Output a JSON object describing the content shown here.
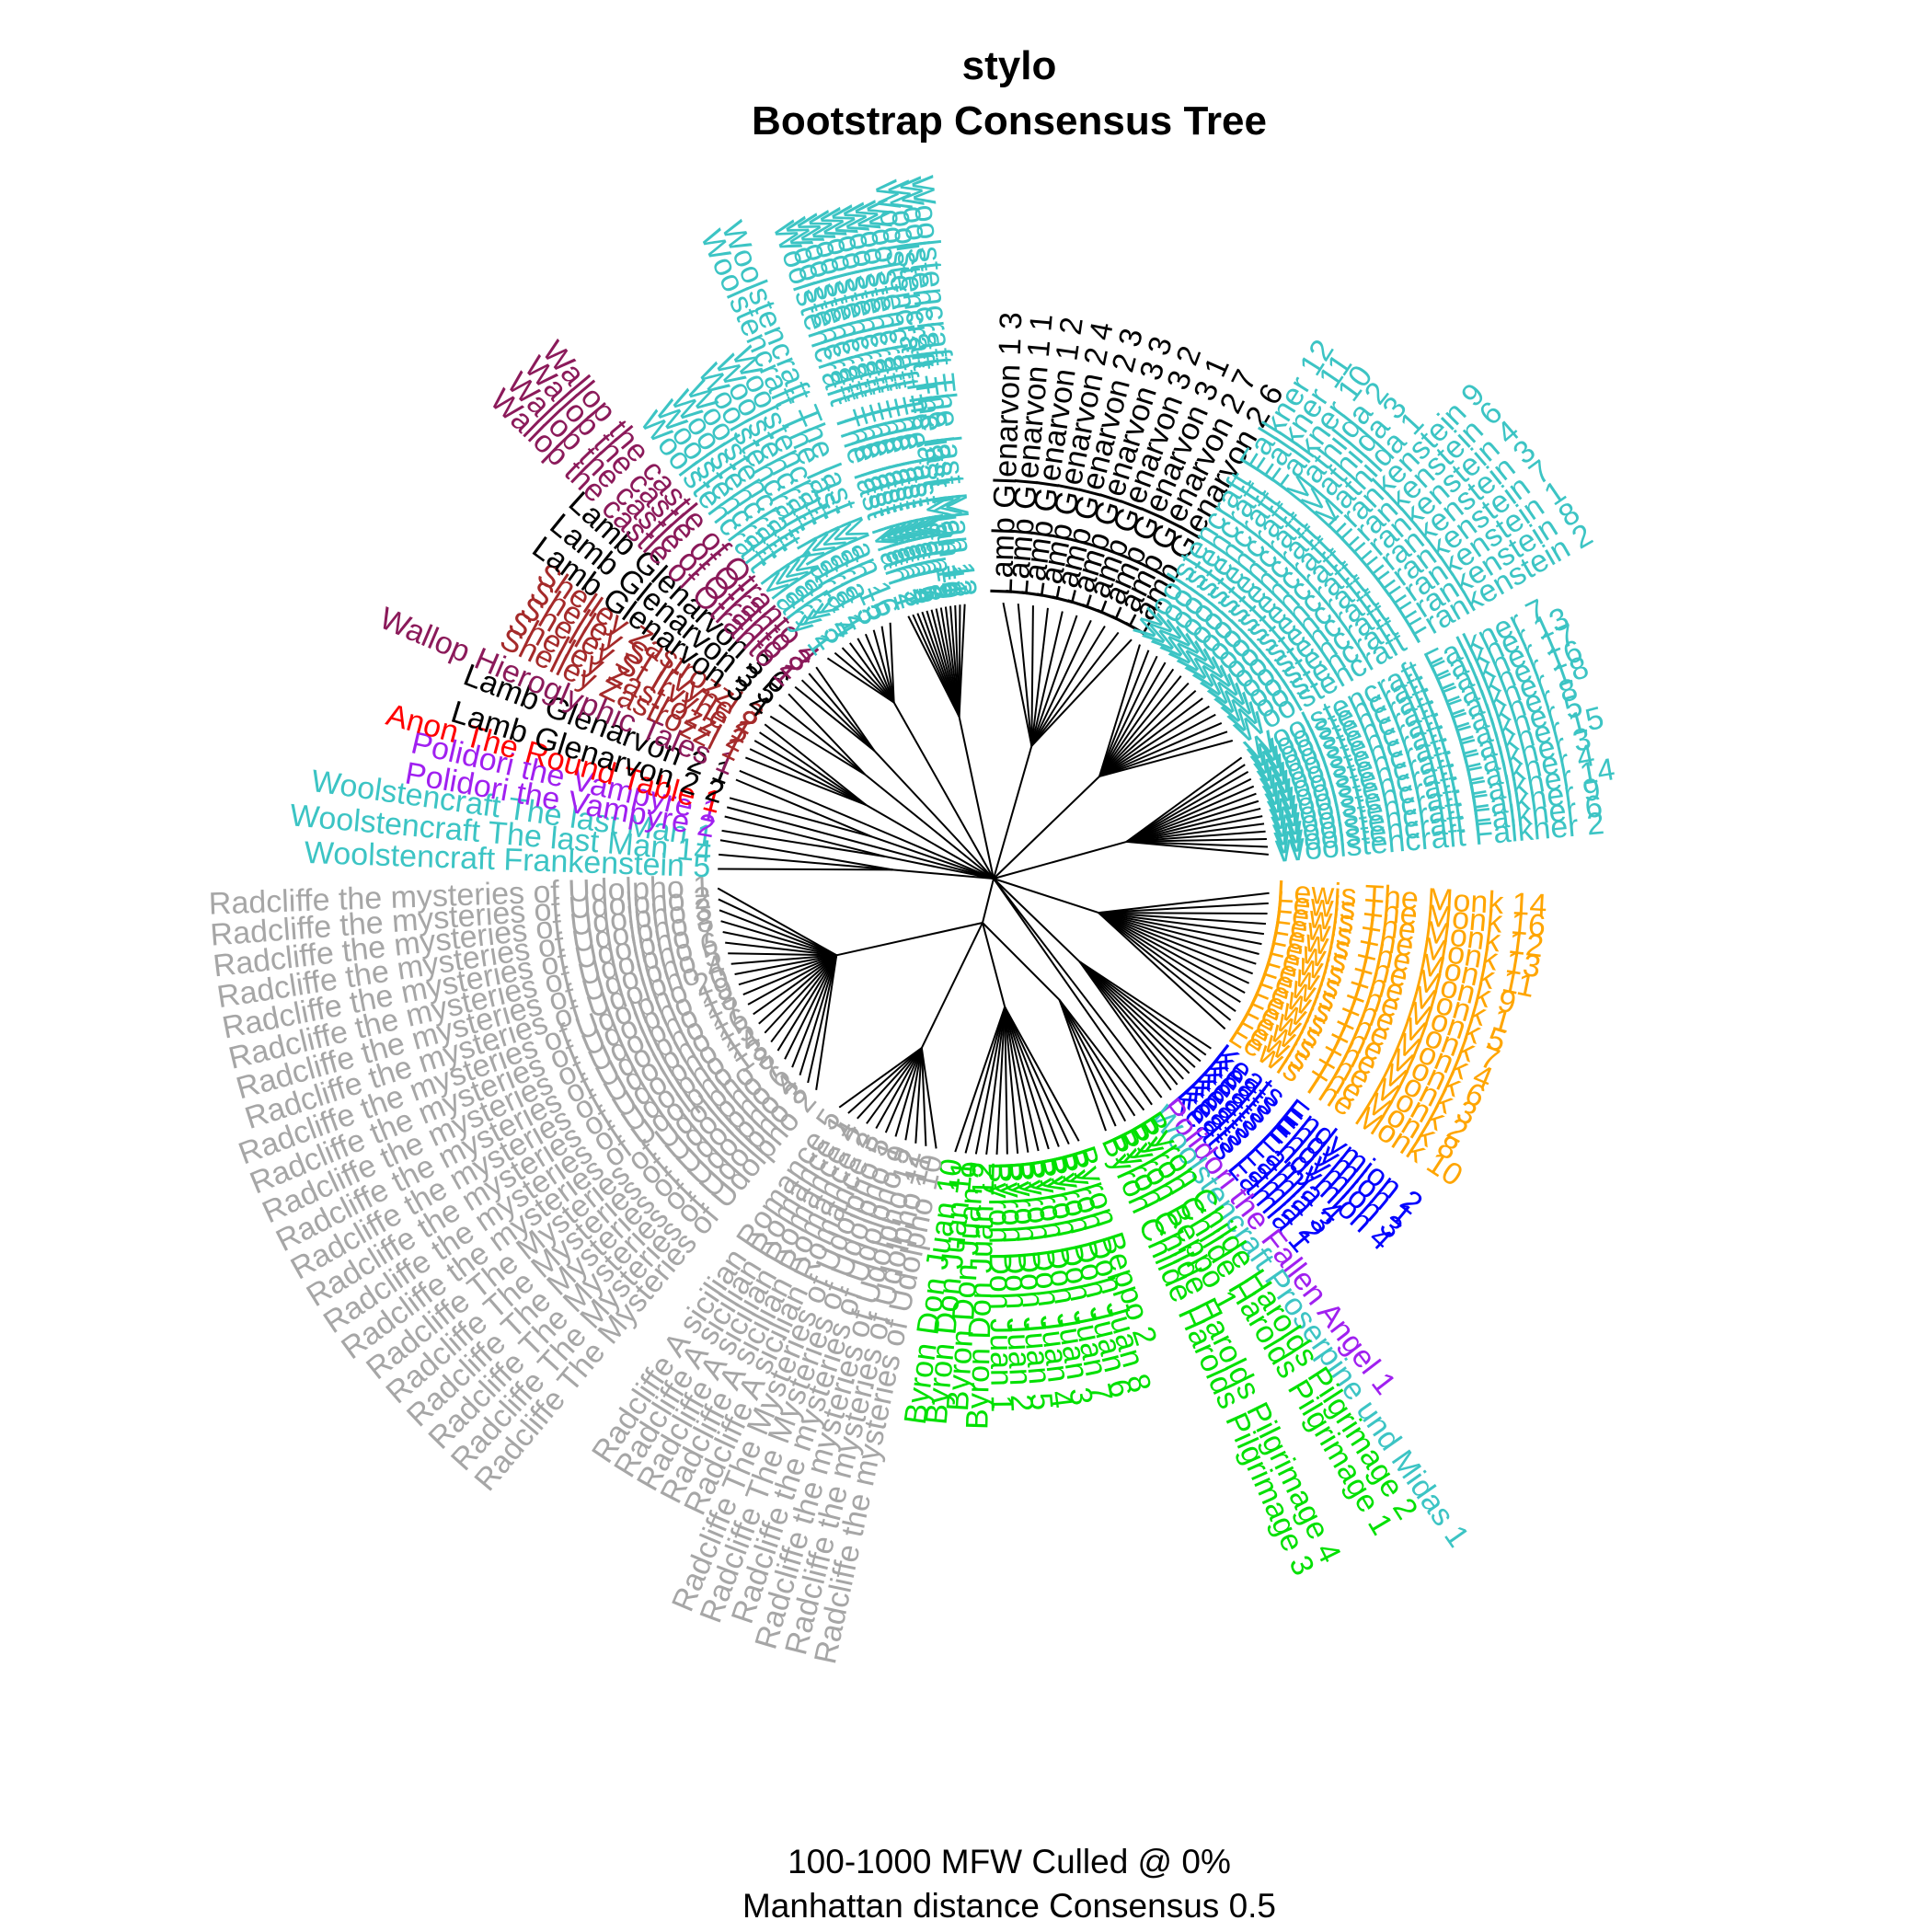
{
  "title": {
    "line1": "stylo",
    "line2": "Bootstrap Consensus Tree"
  },
  "footer": {
    "line1": "100-1000 MFW  Culled @ 0%",
    "line2": "Manhattan distance Consensus 0.5"
  },
  "colors": {
    "woolstencraft": "#3cc4c4",
    "lamb": "#000000",
    "wallop": "#8b1a5a",
    "shelley": "#a52a2a",
    "polidori": "#a020f0",
    "anon": "#ff0000",
    "radcliffe": "#a6a6a6",
    "byron": "#00e000",
    "keats": "#0000ff",
    "lewis": "#ffa500",
    "edge": "#000000"
  },
  "tree": {
    "root_text": "",
    "groups": [
      {
        "name": "woolstencraft-top",
        "color_key": "woolstencraft",
        "leaves": [
          "Woolstencraft The last Man 1",
          "Woolstencraft The last Man 2",
          "Woolstencraft The last Man 3",
          "Woolstencraft The last Man 4",
          "Woolstencraft The last Man 5",
          "Woolstencraft The last Man 6",
          "Woolstencraft The last Man 7",
          "Woolstencraft The last Man 8",
          "Woolstencraft The last Man 9",
          "Woolstencraft The last Man 10",
          "Woolstencraft The last Man 11",
          "Woolstencraft The last Man 12",
          "Woolstencraft The last Man 13"
        ]
      },
      {
        "name": "lamb-top",
        "color_key": "lamb",
        "leaves": [
          "Lamb Glenarvon 1 3",
          "Lamb Glenarvon 1 1",
          "Lamb Glenarvon 1 2",
          "Lamb Glenarvon 2 4",
          "Lamb Glenarvon 2 3",
          "Lamb Glenarvon 3 3",
          "Lamb Glenarvon 3 2",
          "Lamb Glenarvon 3 1",
          "Lamb Glenarvon 2 7",
          "Lamb Glenarvon 2 6"
        ]
      },
      {
        "name": "frankenstein-mathilda",
        "color_key": "woolstencraft",
        "leaves": [
          "Woolstencraft Falkner 12",
          "Woolstencraft Falkner 11",
          "Woolstencraft Falkner 10",
          "Woolstencraft Mathilda 2",
          "Woolstencraft Mathilda 3",
          "Woolstencraft Mathilda 1",
          "Woolstencraft Frankenstein 9",
          "Woolstencraft Frankenstein 6",
          "Woolstencraft Frankenstein 4",
          "Woolstencraft Frankenstein 3",
          "Woolstencraft Frankenstein 7",
          "Woolstencraft Frankenstein 1",
          "Woolstencraft Frankenstein 8",
          "Woolstencraft Frankenstein 2"
        ]
      },
      {
        "name": "falkner",
        "color_key": "woolstencraft",
        "leaves": [
          "Woolstencraft Falkner 7",
          "Woolstencraft Falkner 13",
          "Woolstencraft Falkner 17",
          "Woolstencraft Falkner 16",
          "Woolstencraft Falkner 18",
          "Woolstencraft Falkner 8",
          "Woolstencraft Falkner 5",
          "Woolstencraft Falkner 15",
          "Woolstencraft Falkner 3",
          "Woolstencraft Falkner 4",
          "Woolstencraft Falkner 14",
          "Woolstencraft Falkner 9",
          "Woolstencraft Falkner 6",
          "Woolstencraft Falkner 2"
        ]
      },
      {
        "name": "lewis",
        "color_key": "lewis",
        "leaves": [
          "Lewis The Monk 14",
          "Lewis The Monk 16",
          "Lewis The Monk 12",
          "Lewis The Monk 13",
          "Lewis The Monk 11",
          "Lewis The Monk 9",
          "Lewis The Monk 1",
          "Lewis The Monk 5",
          "Lewis The Monk 7",
          "Lewis The Monk 4",
          "Lewis The Monk 6",
          "Lewis The Monk 3",
          "Lewis The Monk 2",
          "Lewis The Monk 8",
          "Lewis The Monk 10"
        ]
      },
      {
        "name": "keats",
        "color_key": "keats",
        "leaves": [
          "Keats Endymion 2",
          "Keats Endymion 1",
          "Keats Endymion 3",
          "Keats Endymion 4",
          "Keats Lamia 4",
          "Keats Lamia 3",
          "Keats Lamia 2",
          "Keats Lamia 1"
        ]
      },
      {
        "name": "polidori-angel",
        "color_key": "polidori",
        "leaves": [
          "Polidori the Fallen Angel 1"
        ]
      },
      {
        "name": "proserpine",
        "color_key": "woolstencraft",
        "leaves": [
          "Woolstencraft Proserpine und Midas 1"
        ]
      },
      {
        "name": "byron-childe",
        "color_key": "byron",
        "leaves": [
          "Byron Childe Harolds Pilgrimage 2",
          "Byron Childe Harolds Pilgrimage 1",
          "Byron Beppo 1",
          "Byron Childe Harolds Pilgrimage 4",
          "Byron Childe Harolds Pilgrimage 3"
        ]
      },
      {
        "name": "byron-don-juan",
        "color_key": "byron",
        "leaves": [
          "Byron Beppo 2",
          "Byron Don Juan 8",
          "Byron Don Juan 6",
          "Byron Don Juan 7",
          "Byron Don Juan 3",
          "Byron Don Juan 4",
          "Byron Don Juan 5",
          "Byron Don Juan 2",
          "Byron Don Juan 1",
          "Byron Don Juan 12",
          "Byron Don Juan 9",
          "Byron Don Juan 11",
          "Byron Don Juan 10"
        ]
      },
      {
        "name": "radcliffe-sicilian",
        "color_key": "radcliffe",
        "leaves": [
          "Radcliffe the mysteries of Udolpho 10",
          "Radcliffe the mysteries of Udolpho 11",
          "Radcliffe the mysteries of Udolpho 12",
          "Radcliffe the mysteries of Udolpho 9",
          "Radcliffe The Mysteries of Udolpho 1",
          "Radcliffe The Mysteries of Udolpho 5",
          "Radcliffe A sicilian Romance 3",
          "Radcliffe A sicilian Romance 2",
          "Radcliffe A sicilian Romance 4",
          "Radcliffe A sicilian Romance 1",
          "Radcliffe A sicilian Romance 5"
        ]
      },
      {
        "name": "radcliffe-udolpho",
        "color_key": "radcliffe",
        "leaves": [
          "Radcliffe The Mysteries of Udolpho 2",
          "Radcliffe The Mysteries of Udolpho 3",
          "Radcliffe The Mysteries of Udolpho 4",
          "Radcliffe The Mysteries of Udolpho 6",
          "Radcliffe The Mysteries of Udolpho 7",
          "Radcliffe The Mysteries of Udolpho 8",
          "Radcliffe the mysteries of Udolpho 13",
          "Radcliffe the mysteries of Udolpho 14",
          "Radcliffe the mysteries of Udolpho 15",
          "Radcliffe the mysteries of Udolpho 16",
          "Radcliffe the mysteries of Udolpho 17",
          "Radcliffe the mysteries of Udolpho 18",
          "Radcliffe the mysteries of Udolpho 19",
          "Radcliffe the mysteries of Udolpho 20",
          "Radcliffe the mysteries of Udolpho 4",
          "Radcliffe the mysteries of Udolpho 5",
          "Radcliffe the mysteries of Udolpho 6",
          "Radcliffe the mysteries of Udolpho 7",
          "Radcliffe the mysteries of Udolpho 8",
          "Radcliffe the mysteries of Udolpho 3",
          "Radcliffe the mysteries of Udolpho 2",
          "Radcliffe the mysteries of Udolpho 1"
        ]
      },
      {
        "name": "left-mixed",
        "color_key": "woolstencraft",
        "leaves": [
          "Woolstencraft Frankenstein 5",
          "Woolstencraft The last Man 14",
          "Woolstencraft The last Man 1"
        ]
      },
      {
        "name": "polidori-vampyre",
        "color_key": "polidori",
        "leaves": [
          "Polidori the Vampyre 2",
          "Polidori the Vampyre 1"
        ]
      },
      {
        "name": "anon",
        "color_key": "anon",
        "leaves": [
          "Anon The Round Table 1"
        ]
      },
      {
        "name": "lamb-left",
        "color_key": "lamb",
        "leaves": [
          "Lamb Glenarvon 2 2",
          "Lamb Glenarvon 2 1"
        ]
      },
      {
        "name": "wallop-hieroglyphic",
        "color_key": "wallop",
        "leaves": [
          "Wallop Hieroglyphic Tales 1"
        ]
      },
      {
        "name": "shelley",
        "color_key": "shelley",
        "leaves": [
          "Shelley Zastrozzi 1",
          "Shelley Zastrozzi 2",
          "Shelley St Irvyne 1",
          "Shelley St Irvyne 2",
          "Shelley Zastrozzi 3"
        ]
      },
      {
        "name": "lamb-left-2",
        "color_key": "lamb",
        "leaves": [
          "Lamb Glenarvon 3 4",
          "Lamb Glenarvon 3 5",
          "Lamb Glenarvon 3 6"
        ]
      },
      {
        "name": "wallop-castle",
        "color_key": "wallop",
        "leaves": [
          "Wallop the castle of Otranto 1",
          "Wallop the castle of Otranto 2",
          "Wallop the castle of Otranto 3",
          "Wallop the castle of Otranto 4"
        ]
      },
      {
        "name": "woolstencraft-upper-left",
        "color_key": "woolstencraft",
        "leaves": [
          "Woolstencraft Mary 1",
          "Woolstencraft Mary 2",
          "Woolstencraft Mary 3",
          "Woolstencraft Mary 4",
          "Woolstencraft Maria 1",
          "Woolstencraft Maria 2",
          "Woolstencraft Maria 3",
          "Woolstencraft The last Man 15",
          "Woolstencraft The last Man 16"
        ]
      }
    ]
  }
}
